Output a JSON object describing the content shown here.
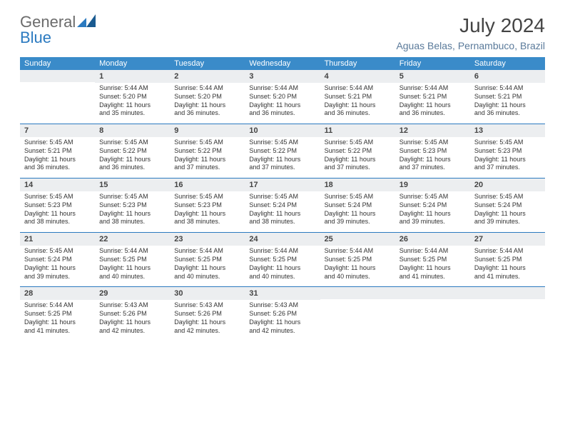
{
  "logo": {
    "text1": "General",
    "text2": "Blue"
  },
  "title": "July 2024",
  "location": "Aguas Belas, Pernambuco, Brazil",
  "weekdays": [
    "Sunday",
    "Monday",
    "Tuesday",
    "Wednesday",
    "Thursday",
    "Friday",
    "Saturday"
  ],
  "colors": {
    "header_bg": "#3a8bc9",
    "accent": "#2b7ac0",
    "daynum_bg": "#eceef0",
    "text": "#333333",
    "logo_grey": "#6b6b6b",
    "location": "#5a7a9a"
  },
  "weeks": [
    [
      null,
      {
        "n": "1",
        "sr": "Sunrise: 5:44 AM",
        "ss": "Sunset: 5:20 PM",
        "dl1": "Daylight: 11 hours",
        "dl2": "and 35 minutes."
      },
      {
        "n": "2",
        "sr": "Sunrise: 5:44 AM",
        "ss": "Sunset: 5:20 PM",
        "dl1": "Daylight: 11 hours",
        "dl2": "and 36 minutes."
      },
      {
        "n": "3",
        "sr": "Sunrise: 5:44 AM",
        "ss": "Sunset: 5:20 PM",
        "dl1": "Daylight: 11 hours",
        "dl2": "and 36 minutes."
      },
      {
        "n": "4",
        "sr": "Sunrise: 5:44 AM",
        "ss": "Sunset: 5:21 PM",
        "dl1": "Daylight: 11 hours",
        "dl2": "and 36 minutes."
      },
      {
        "n": "5",
        "sr": "Sunrise: 5:44 AM",
        "ss": "Sunset: 5:21 PM",
        "dl1": "Daylight: 11 hours",
        "dl2": "and 36 minutes."
      },
      {
        "n": "6",
        "sr": "Sunrise: 5:44 AM",
        "ss": "Sunset: 5:21 PM",
        "dl1": "Daylight: 11 hours",
        "dl2": "and 36 minutes."
      }
    ],
    [
      {
        "n": "7",
        "sr": "Sunrise: 5:45 AM",
        "ss": "Sunset: 5:21 PM",
        "dl1": "Daylight: 11 hours",
        "dl2": "and 36 minutes."
      },
      {
        "n": "8",
        "sr": "Sunrise: 5:45 AM",
        "ss": "Sunset: 5:22 PM",
        "dl1": "Daylight: 11 hours",
        "dl2": "and 36 minutes."
      },
      {
        "n": "9",
        "sr": "Sunrise: 5:45 AM",
        "ss": "Sunset: 5:22 PM",
        "dl1": "Daylight: 11 hours",
        "dl2": "and 37 minutes."
      },
      {
        "n": "10",
        "sr": "Sunrise: 5:45 AM",
        "ss": "Sunset: 5:22 PM",
        "dl1": "Daylight: 11 hours",
        "dl2": "and 37 minutes."
      },
      {
        "n": "11",
        "sr": "Sunrise: 5:45 AM",
        "ss": "Sunset: 5:22 PM",
        "dl1": "Daylight: 11 hours",
        "dl2": "and 37 minutes."
      },
      {
        "n": "12",
        "sr": "Sunrise: 5:45 AM",
        "ss": "Sunset: 5:23 PM",
        "dl1": "Daylight: 11 hours",
        "dl2": "and 37 minutes."
      },
      {
        "n": "13",
        "sr": "Sunrise: 5:45 AM",
        "ss": "Sunset: 5:23 PM",
        "dl1": "Daylight: 11 hours",
        "dl2": "and 37 minutes."
      }
    ],
    [
      {
        "n": "14",
        "sr": "Sunrise: 5:45 AM",
        "ss": "Sunset: 5:23 PM",
        "dl1": "Daylight: 11 hours",
        "dl2": "and 38 minutes."
      },
      {
        "n": "15",
        "sr": "Sunrise: 5:45 AM",
        "ss": "Sunset: 5:23 PM",
        "dl1": "Daylight: 11 hours",
        "dl2": "and 38 minutes."
      },
      {
        "n": "16",
        "sr": "Sunrise: 5:45 AM",
        "ss": "Sunset: 5:23 PM",
        "dl1": "Daylight: 11 hours",
        "dl2": "and 38 minutes."
      },
      {
        "n": "17",
        "sr": "Sunrise: 5:45 AM",
        "ss": "Sunset: 5:24 PM",
        "dl1": "Daylight: 11 hours",
        "dl2": "and 38 minutes."
      },
      {
        "n": "18",
        "sr": "Sunrise: 5:45 AM",
        "ss": "Sunset: 5:24 PM",
        "dl1": "Daylight: 11 hours",
        "dl2": "and 39 minutes."
      },
      {
        "n": "19",
        "sr": "Sunrise: 5:45 AM",
        "ss": "Sunset: 5:24 PM",
        "dl1": "Daylight: 11 hours",
        "dl2": "and 39 minutes."
      },
      {
        "n": "20",
        "sr": "Sunrise: 5:45 AM",
        "ss": "Sunset: 5:24 PM",
        "dl1": "Daylight: 11 hours",
        "dl2": "and 39 minutes."
      }
    ],
    [
      {
        "n": "21",
        "sr": "Sunrise: 5:45 AM",
        "ss": "Sunset: 5:24 PM",
        "dl1": "Daylight: 11 hours",
        "dl2": "and 39 minutes."
      },
      {
        "n": "22",
        "sr": "Sunrise: 5:44 AM",
        "ss": "Sunset: 5:25 PM",
        "dl1": "Daylight: 11 hours",
        "dl2": "and 40 minutes."
      },
      {
        "n": "23",
        "sr": "Sunrise: 5:44 AM",
        "ss": "Sunset: 5:25 PM",
        "dl1": "Daylight: 11 hours",
        "dl2": "and 40 minutes."
      },
      {
        "n": "24",
        "sr": "Sunrise: 5:44 AM",
        "ss": "Sunset: 5:25 PM",
        "dl1": "Daylight: 11 hours",
        "dl2": "and 40 minutes."
      },
      {
        "n": "25",
        "sr": "Sunrise: 5:44 AM",
        "ss": "Sunset: 5:25 PM",
        "dl1": "Daylight: 11 hours",
        "dl2": "and 40 minutes."
      },
      {
        "n": "26",
        "sr": "Sunrise: 5:44 AM",
        "ss": "Sunset: 5:25 PM",
        "dl1": "Daylight: 11 hours",
        "dl2": "and 41 minutes."
      },
      {
        "n": "27",
        "sr": "Sunrise: 5:44 AM",
        "ss": "Sunset: 5:25 PM",
        "dl1": "Daylight: 11 hours",
        "dl2": "and 41 minutes."
      }
    ],
    [
      {
        "n": "28",
        "sr": "Sunrise: 5:44 AM",
        "ss": "Sunset: 5:25 PM",
        "dl1": "Daylight: 11 hours",
        "dl2": "and 41 minutes."
      },
      {
        "n": "29",
        "sr": "Sunrise: 5:43 AM",
        "ss": "Sunset: 5:26 PM",
        "dl1": "Daylight: 11 hours",
        "dl2": "and 42 minutes."
      },
      {
        "n": "30",
        "sr": "Sunrise: 5:43 AM",
        "ss": "Sunset: 5:26 PM",
        "dl1": "Daylight: 11 hours",
        "dl2": "and 42 minutes."
      },
      {
        "n": "31",
        "sr": "Sunrise: 5:43 AM",
        "ss": "Sunset: 5:26 PM",
        "dl1": "Daylight: 11 hours",
        "dl2": "and 42 minutes."
      },
      null,
      null,
      null
    ]
  ]
}
